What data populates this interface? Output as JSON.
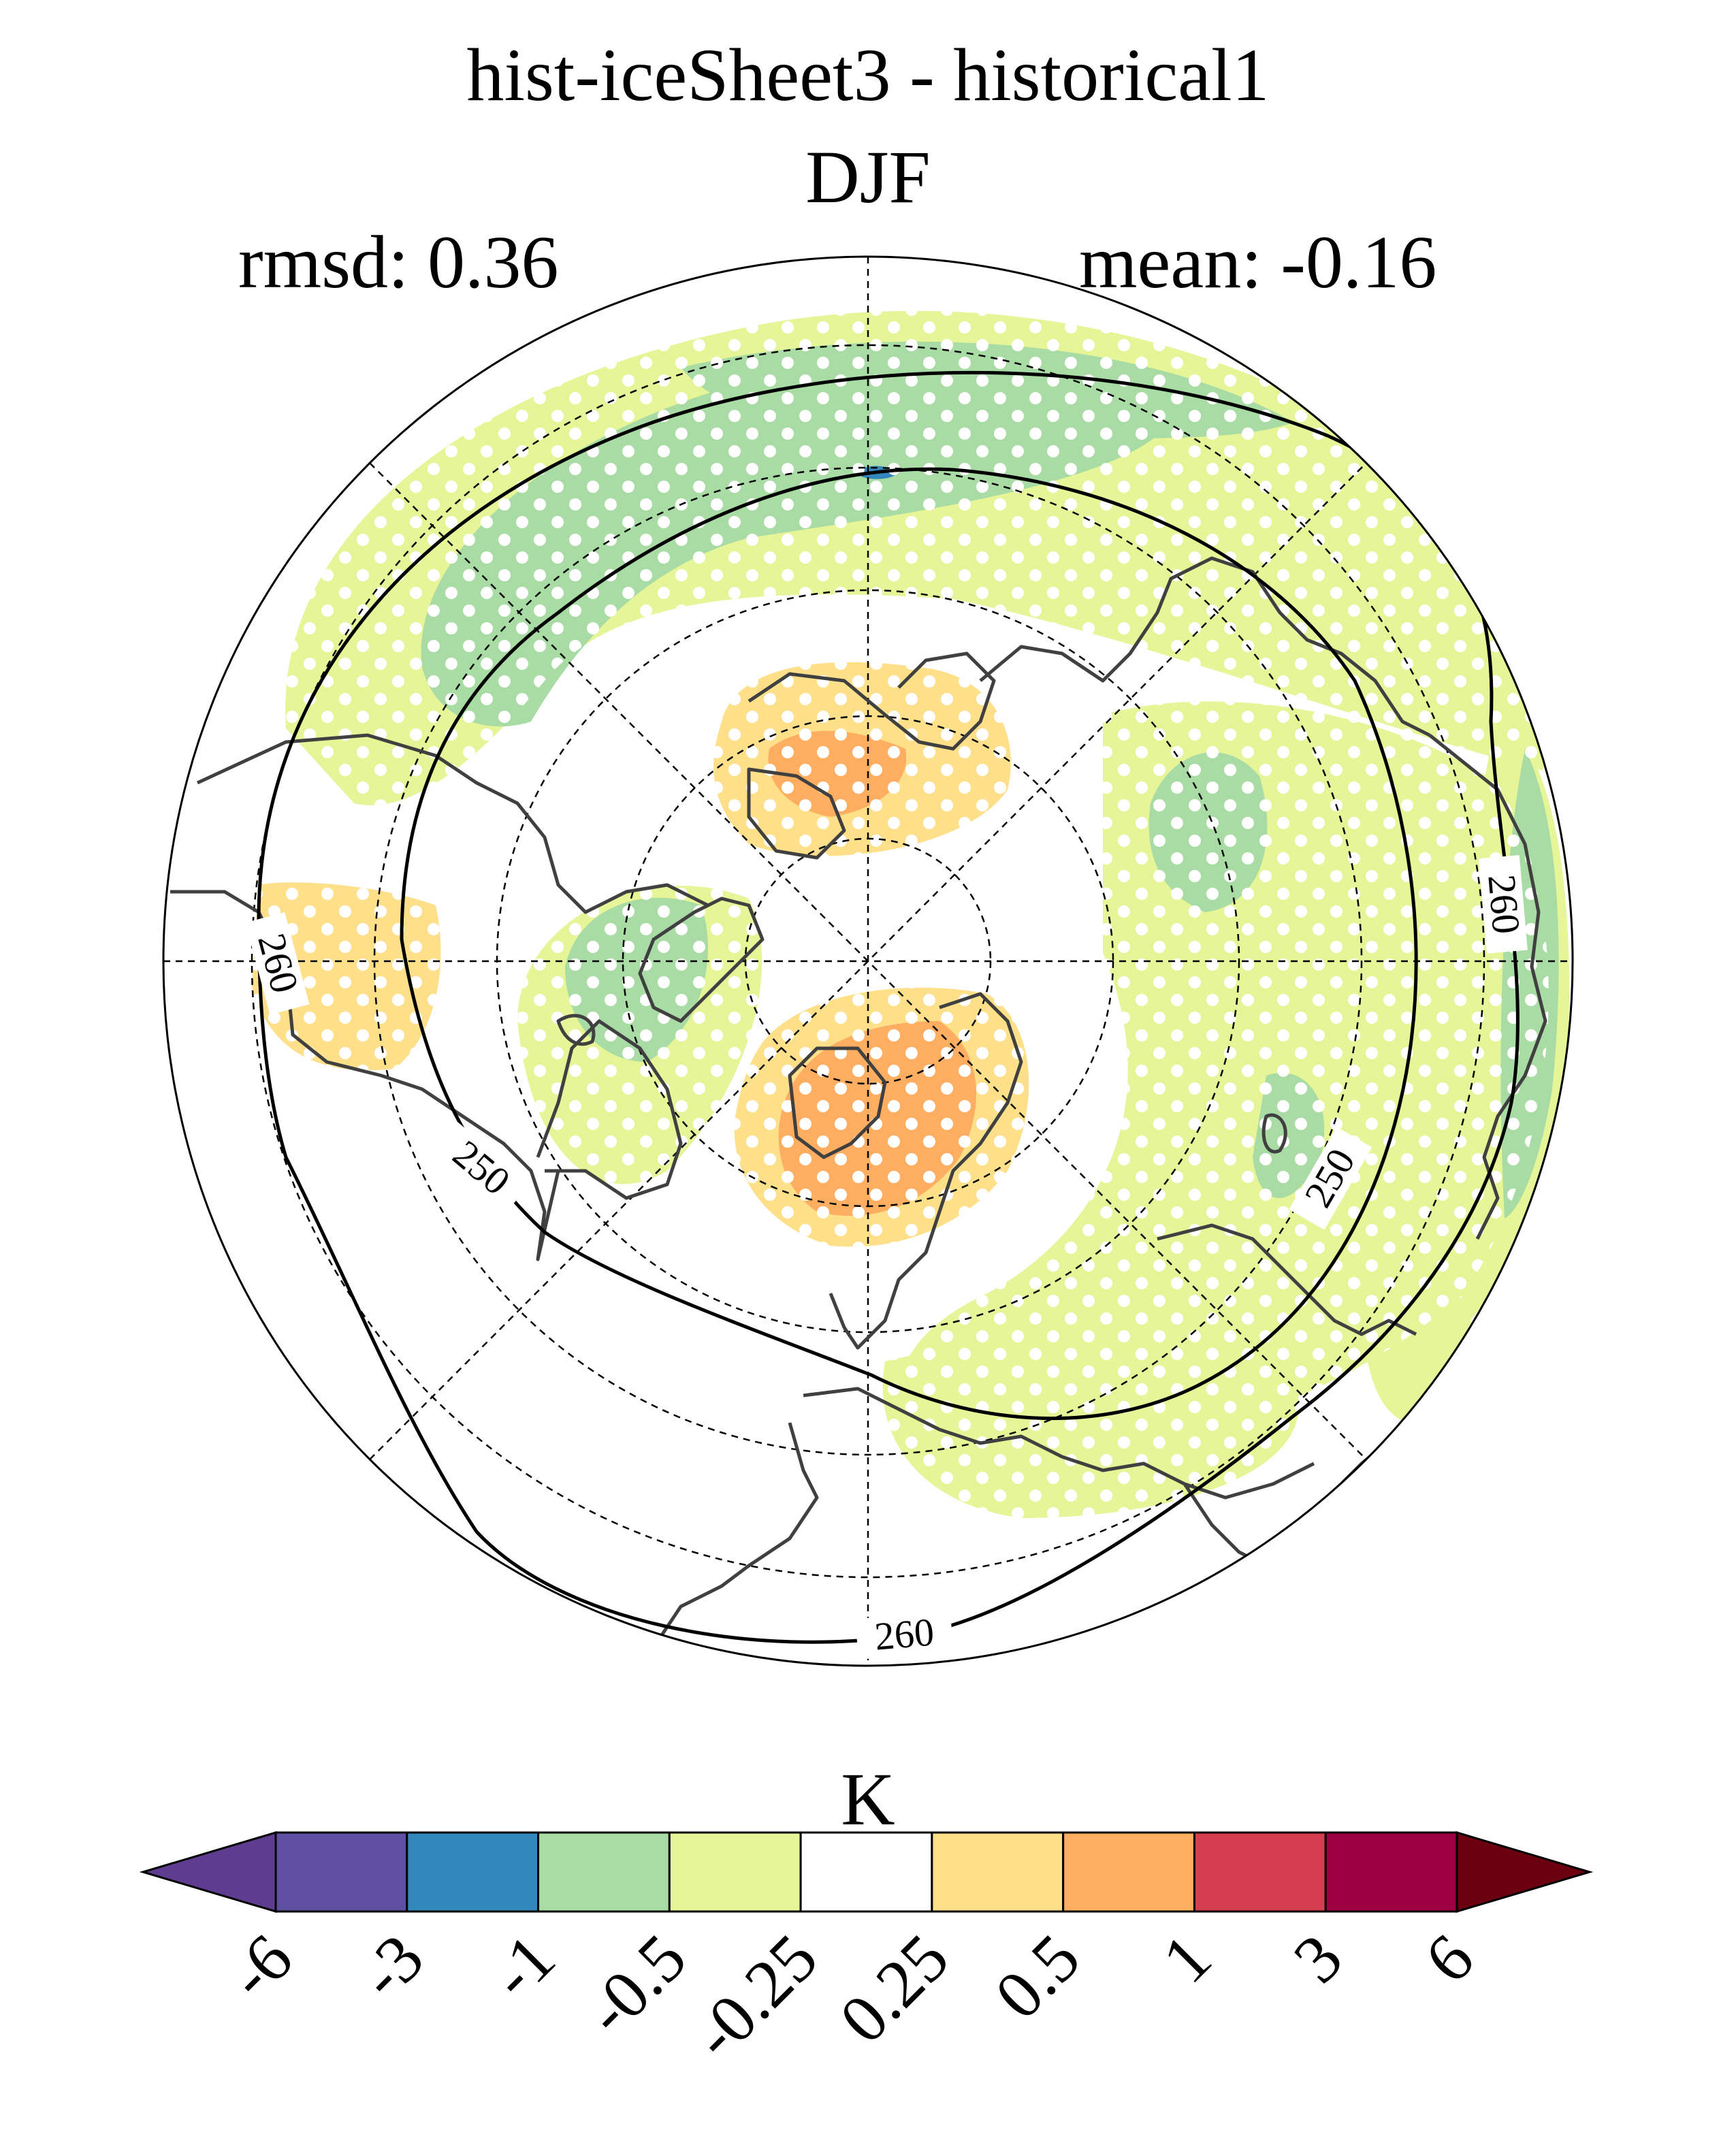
{
  "header": {
    "title": "hist-iceSheet3 - historical1",
    "subtitle": "DJF",
    "rmsd_label": "rmsd: 0.36",
    "mean_label": "mean: -0.16"
  },
  "map": {
    "projection": "north-polar-stereographic",
    "contour_labels": [
      {
        "text": "260"
      },
      {
        "text": "260"
      },
      {
        "text": "260"
      },
      {
        "text": "250"
      },
      {
        "text": "250"
      }
    ],
    "contour_values": [
      250,
      260
    ],
    "stippling": "white dots mark significant regions"
  },
  "colorbar": {
    "unit_label": "K",
    "tick_labels": [
      "-6",
      "-3",
      "-1",
      "-0.5",
      "-0.25",
      "0.25",
      "0.5",
      "1",
      "3",
      "6"
    ],
    "colors": [
      "#5e3c8f",
      "#5e4fa2",
      "#3288bd",
      "#a9dba4",
      "#e6f598",
      "#ffffff",
      "#fee08b",
      "#fdae61",
      "#d53e4f",
      "#9e0142",
      "#6a0010"
    ],
    "extend": "both"
  }
}
